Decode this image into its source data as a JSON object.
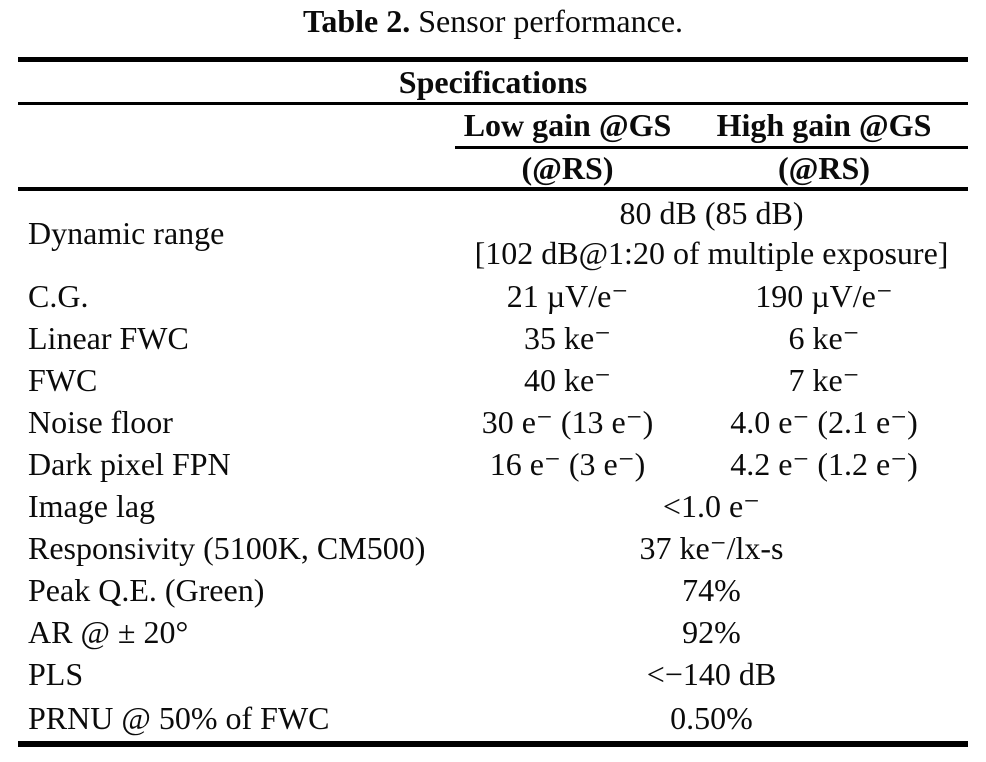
{
  "page": {
    "background": "#ffffff",
    "text_color": "#0a0a0a",
    "rule_color": "#000000"
  },
  "caption": {
    "label": "Table 2.",
    "text": " Sensor performance."
  },
  "table": {
    "group_header": "Specifications",
    "columns": {
      "low_gain": {
        "line1": "Low gain @GS",
        "line2": "(@RS)"
      },
      "high_gain": {
        "line1": "High gain @GS",
        "line2": "(@RS)"
      }
    },
    "rows": [
      {
        "label": "Dynamic range",
        "span_line1": "80 dB (85 dB)",
        "span_line2": "[102 dB@1:20 of multiple exposure]"
      },
      {
        "label": "C.G.",
        "low": "21 µV/e⁻",
        "high": "190 µV/e⁻"
      },
      {
        "label": "Linear FWC",
        "low": "35 ke⁻",
        "high": "6 ke⁻"
      },
      {
        "label": "FWC",
        "low": "40 ke⁻",
        "high": "7 ke⁻"
      },
      {
        "label": "Noise floor",
        "low": "30 e⁻ (13 e⁻)",
        "high": "4.0 e⁻ (2.1 e⁻)"
      },
      {
        "label": "Dark pixel FPN",
        "low": "16 e⁻ (3 e⁻)",
        "high": "4.2 e⁻ (1.2 e⁻)"
      },
      {
        "label": "Image lag",
        "span": "<1.0 e⁻"
      },
      {
        "label": "Responsivity (5100K, CM500)",
        "span": "37 ke⁻/lx-s"
      },
      {
        "label": "Peak Q.E. (Green)",
        "span": "74%"
      },
      {
        "label": "AR @ ± 20°",
        "span": "92%"
      },
      {
        "label": "PLS",
        "span": "<−140 dB"
      },
      {
        "label": "PRNU @ 50% of FWC",
        "span": "0.50%"
      }
    ]
  }
}
